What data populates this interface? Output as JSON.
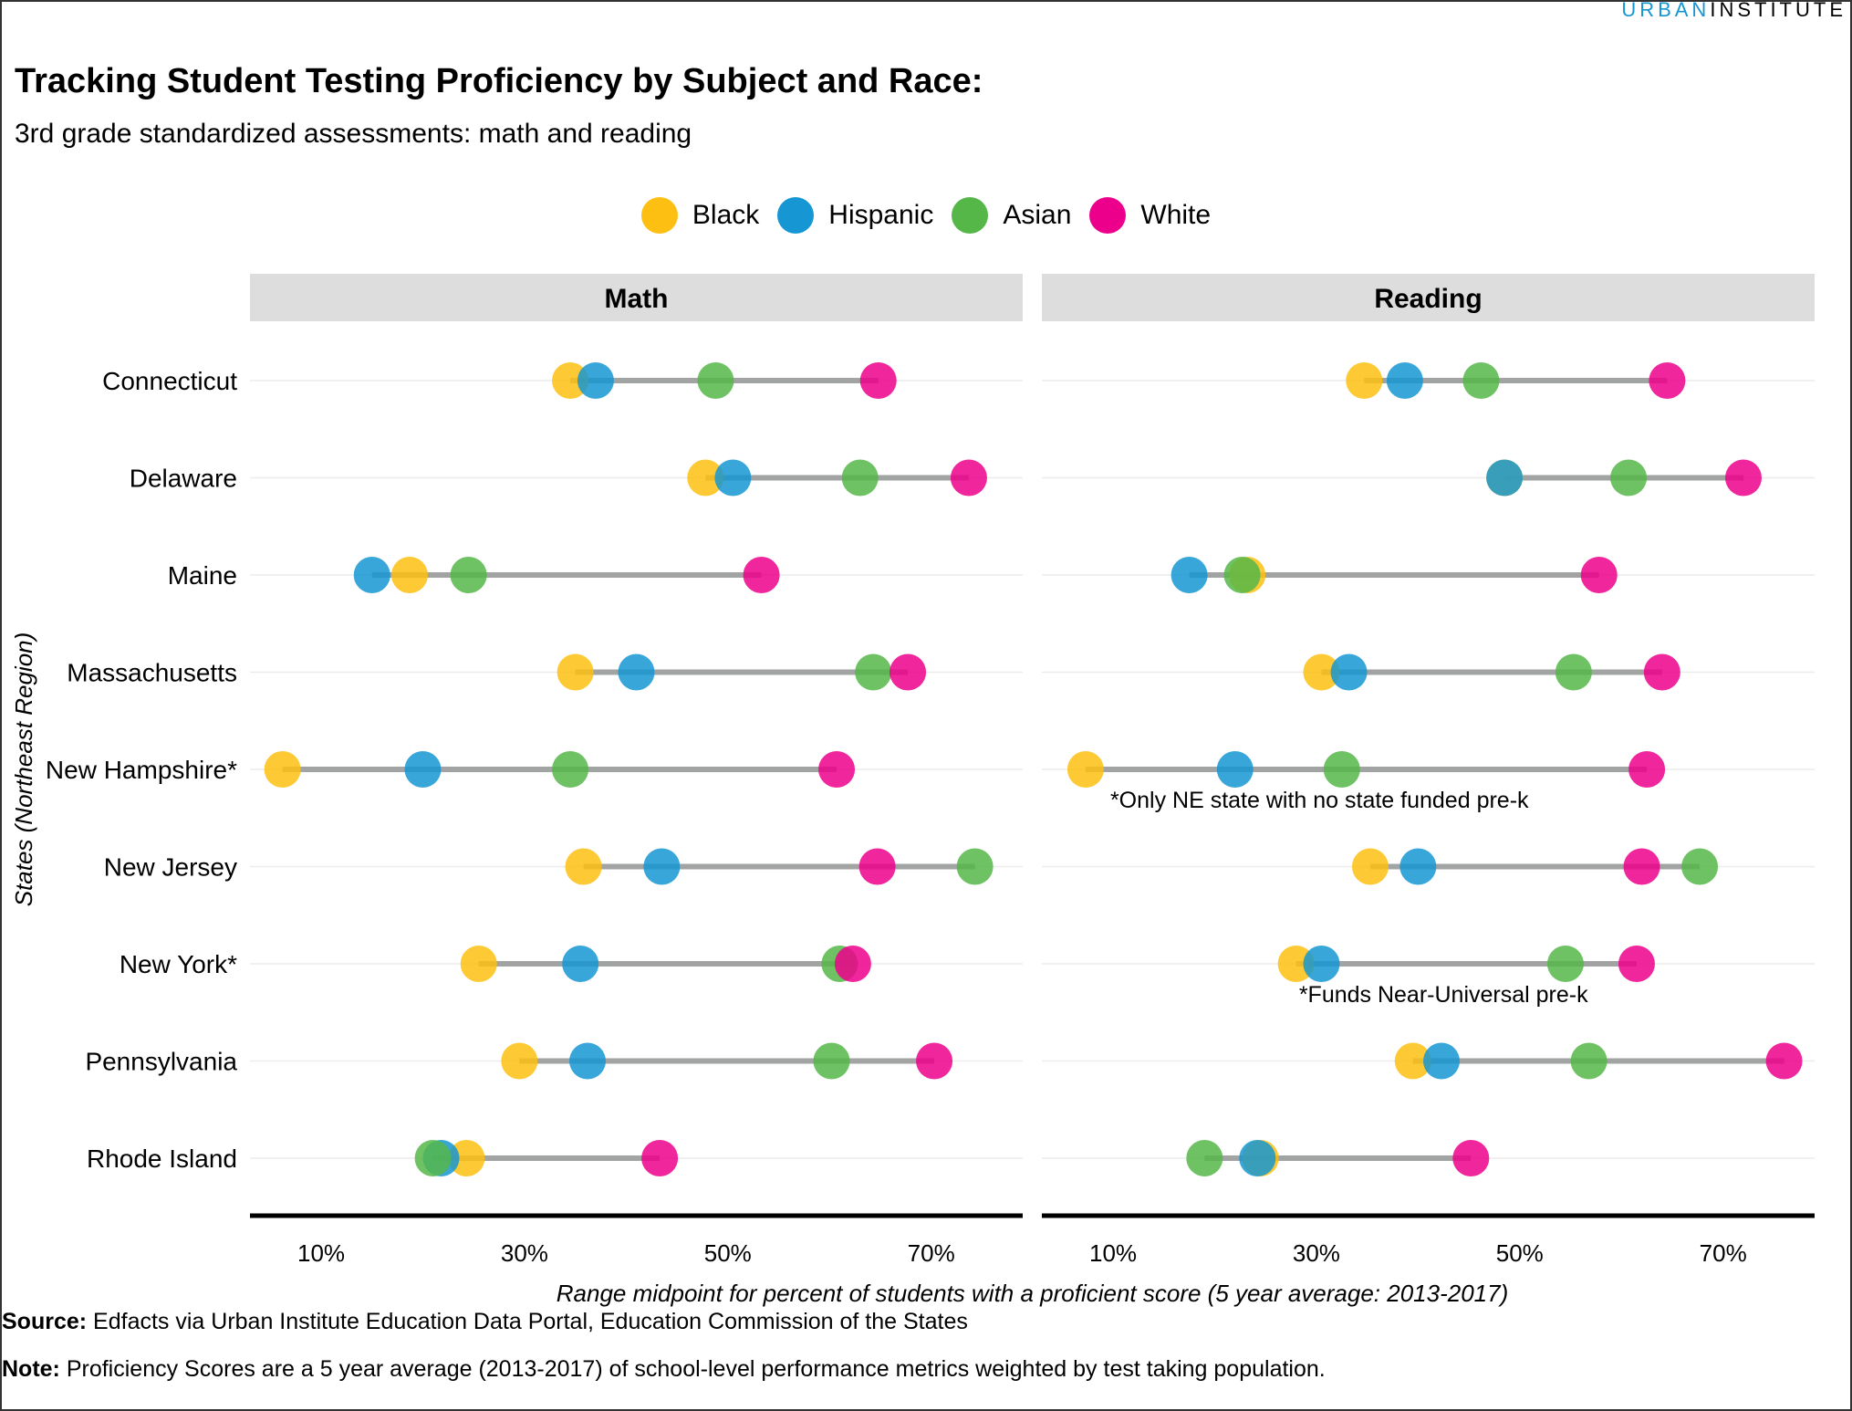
{
  "brand": {
    "part1": "URBAN",
    "part2": "INSTITUTE"
  },
  "header": {
    "title": "Tracking Student Testing Proficiency by Subject and Race:",
    "subtitle": "3rd grade standardized assessments: math and reading"
  },
  "legend": [
    {
      "name": "Black",
      "color": "#fdbf11"
    },
    {
      "name": "Hispanic",
      "color": "#1696d2"
    },
    {
      "name": "Asian",
      "color": "#55b748"
    },
    {
      "name": "White",
      "color": "#ec008b"
    }
  ],
  "footer": {
    "source_label": "Source:",
    "source_text": " Edfacts via Urban Institute Education Data Portal, Education Commission of the States",
    "note_label": "Note:",
    "note_text": " Proficiency Scores are a 5 year average (2013-2017) of school-level performance metrics weighted by test taking population."
  },
  "chart_data": {
    "type": "scatter",
    "subtype": "dumbbell",
    "xlabel": "Range midpoint for percent of students with a proficient score (5 year average: 2013-2017)",
    "ylabel": "States (Northeast Region)",
    "xlim": [
      3,
      79
    ],
    "x_ticks": [
      10,
      30,
      50,
      70
    ],
    "x_tick_format": "percent",
    "grid": "horizontal",
    "legend_position": "top",
    "categories": [
      "Connecticut",
      "Delaware",
      "Maine",
      "Massachusetts",
      "New Hampshire*",
      "New Jersey",
      "New York*",
      "Pennsylvania",
      "Rhode Island"
    ],
    "series_order": [
      "Black",
      "Hispanic",
      "Asian",
      "White"
    ],
    "panels": [
      {
        "name": "Math",
        "values": {
          "Black": [
            34.5,
            47.8,
            18.7,
            35.0,
            6.2,
            35.8,
            25.5,
            29.5,
            24.3
          ],
          "Hispanic": [
            37.0,
            50.5,
            15.0,
            41.0,
            20.0,
            43.5,
            35.5,
            36.2,
            21.8
          ],
          "Asian": [
            48.8,
            63.0,
            24.5,
            64.3,
            34.5,
            74.3,
            61.0,
            60.2,
            21.0
          ],
          "White": [
            64.8,
            73.7,
            53.3,
            67.7,
            60.7,
            64.7,
            62.3,
            70.3,
            43.3
          ]
        },
        "annotations": []
      },
      {
        "name": "Reading",
        "values": {
          "Black": [
            34.7,
            48.5,
            23.2,
            30.5,
            7.3,
            35.3,
            28.0,
            39.5,
            24.5
          ],
          "Hispanic": [
            38.7,
            48.5,
            17.5,
            33.2,
            22.0,
            40.0,
            30.5,
            42.3,
            24.2
          ],
          "Asian": [
            46.2,
            60.7,
            22.7,
            55.3,
            32.5,
            67.7,
            54.5,
            56.8,
            19.0
          ],
          "White": [
            64.5,
            72.0,
            57.8,
            64.0,
            62.5,
            62.0,
            61.5,
            76.0,
            45.2
          ]
        },
        "annotations": [
          {
            "category": "New Hampshire*",
            "text": "*Only NE state with no state funded pre-k",
            "x": 30.3
          },
          {
            "category": "New York*",
            "text": "*Funds Near-Universal pre-k",
            "x": 42.5
          }
        ]
      }
    ]
  }
}
